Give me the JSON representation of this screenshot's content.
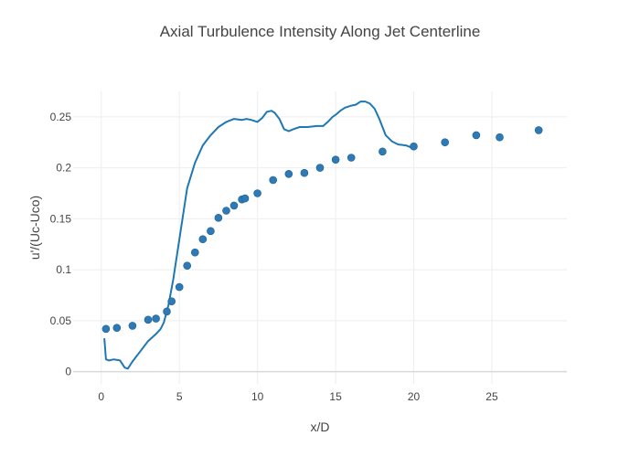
{
  "chart_data": {
    "type": "scatter",
    "title": "Axial Turbulence Intensity Along Jet Centerline",
    "xlabel": "x/D",
    "ylabel": "u'/(Uc-Uco)",
    "xlim": [
      -1.8,
      29.8
    ],
    "ylim": [
      -0.012,
      0.275
    ],
    "xticks": [
      0,
      5,
      10,
      15,
      20,
      25
    ],
    "xtick_labels": [
      "0",
      "5",
      "10",
      "15",
      "20",
      "25"
    ],
    "yticks": [
      0,
      0.05,
      0.1,
      0.15,
      0.2,
      0.25
    ],
    "ytick_labels": [
      "0",
      "0.05",
      "0.1",
      "0.15",
      "0.2",
      "0.25"
    ],
    "grid": true,
    "legend": false,
    "colors": {
      "line": "#1f77b4",
      "marker": "#2e7ab7",
      "marker_edge": "#1c5f8f"
    },
    "series": [
      {
        "mode": "lines",
        "x": [
          0.2,
          0.3,
          0.5,
          0.8,
          1.2,
          1.5,
          1.7,
          2.0,
          2.5,
          3.0,
          3.5,
          3.8,
          4.0,
          4.3,
          4.6,
          5.0,
          5.5,
          6.0,
          6.5,
          7.0,
          7.5,
          8.0,
          8.5,
          9.0,
          9.3,
          9.6,
          10.0,
          10.3,
          10.6,
          10.9,
          11.1,
          11.4,
          11.7,
          12.0,
          12.3,
          12.7,
          13.2,
          13.8,
          14.2,
          14.5,
          14.8,
          15.0,
          15.3,
          15.6,
          16.0,
          16.3,
          16.6,
          16.9,
          17.2,
          17.5,
          17.8,
          18.2,
          18.6,
          19.0,
          19.5,
          20.0
        ],
        "y": [
          0.032,
          0.012,
          0.011,
          0.012,
          0.011,
          0.004,
          0.003,
          0.01,
          0.02,
          0.03,
          0.037,
          0.042,
          0.048,
          0.065,
          0.09,
          0.13,
          0.18,
          0.205,
          0.222,
          0.232,
          0.24,
          0.245,
          0.248,
          0.247,
          0.248,
          0.247,
          0.245,
          0.249,
          0.255,
          0.256,
          0.254,
          0.248,
          0.238,
          0.236,
          0.238,
          0.24,
          0.24,
          0.241,
          0.241,
          0.245,
          0.25,
          0.252,
          0.256,
          0.259,
          0.261,
          0.262,
          0.265,
          0.265,
          0.263,
          0.258,
          0.248,
          0.232,
          0.226,
          0.223,
          0.222,
          0.219
        ]
      },
      {
        "mode": "markers",
        "x": [
          0.3,
          1.0,
          2.0,
          3.0,
          3.5,
          4.2,
          4.5,
          5.0,
          5.5,
          6.0,
          6.5,
          7.0,
          7.5,
          8.0,
          8.5,
          9.0,
          9.2,
          10.0,
          11.0,
          12.0,
          13.0,
          14.0,
          15.0,
          16.0,
          18.0,
          20.0,
          22.0,
          24.0,
          25.5,
          28.0
        ],
        "y": [
          0.042,
          0.043,
          0.045,
          0.051,
          0.052,
          0.059,
          0.069,
          0.083,
          0.104,
          0.117,
          0.13,
          0.138,
          0.151,
          0.158,
          0.163,
          0.169,
          0.17,
          0.175,
          0.188,
          0.194,
          0.195,
          0.2,
          0.208,
          0.21,
          0.216,
          0.221,
          0.225,
          0.232,
          0.23,
          0.237
        ]
      }
    ]
  }
}
